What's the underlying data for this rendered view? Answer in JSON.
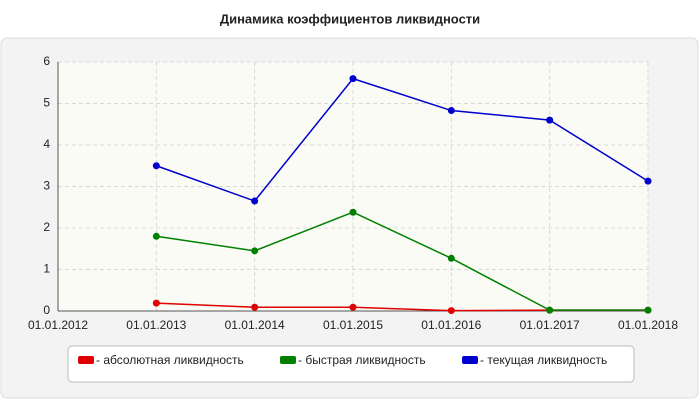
{
  "chart_data": {
    "type": "line",
    "title": "Динамика коэффициентов ликвидности",
    "categories": [
      "01.01.2012",
      "01.01.2013",
      "01.01.2014",
      "01.01.2015",
      "01.01.2016",
      "01.01.2017",
      "01.01.2018"
    ],
    "series": [
      {
        "name": "- абсолютная ликвидность",
        "color": "#e00000",
        "values": [
          null,
          0.19,
          0.09,
          0.09,
          0.01,
          0.02,
          0.02
        ]
      },
      {
        "name": "- быстрая ликвидность",
        "color": "#008000",
        "values": [
          null,
          1.8,
          1.45,
          2.38,
          1.27,
          0.02,
          0.02
        ]
      },
      {
        "name": "- текущая ликвидность",
        "color": "#0000cc",
        "values": [
          null,
          3.5,
          2.65,
          5.6,
          4.83,
          4.6,
          3.13
        ]
      }
    ],
    "ylim": [
      0,
      6
    ],
    "yticks": [
      0,
      1,
      2,
      3,
      4,
      5,
      6
    ],
    "grid": true
  }
}
